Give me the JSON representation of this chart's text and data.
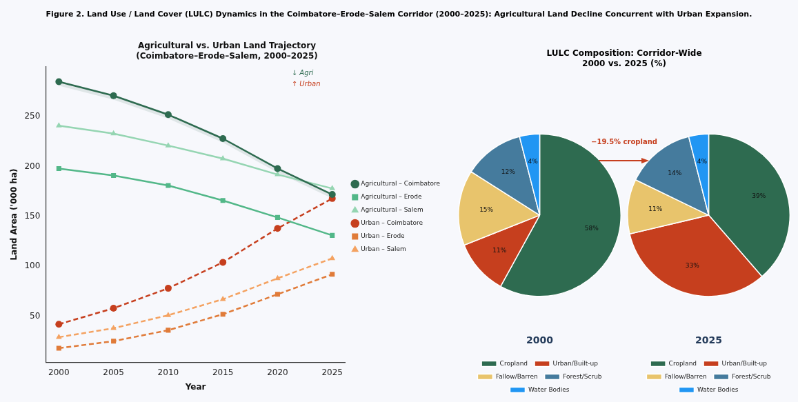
{
  "chart_data": [
    {
      "type": "line",
      "title": "Agricultural vs. Urban Land Trajectory",
      "subtitle": "(Coimbatore–Erode–Salem, 2000–2025)",
      "xlabel": "Year",
      "ylabel": "Land Area ('000 ha)",
      "x": [
        2000,
        2005,
        2010,
        2015,
        2020,
        2025
      ],
      "series": [
        {
          "name": "Agricultural – Coimbatore",
          "color": "#2e6b50",
          "values": [
            285,
            271,
            252,
            228,
            198,
            172
          ],
          "marker": "circle",
          "line_style": "solid",
          "lower": [
            281,
            267,
            248,
            224,
            194,
            168
          ],
          "upper": [
            285,
            271,
            252,
            228,
            198,
            172
          ]
        },
        {
          "name": "Agricultural – Erode",
          "color": "#52b788",
          "values": [
            198,
            191,
            181,
            166,
            149,
            131
          ],
          "marker": "square",
          "line_style": "solid"
        },
        {
          "name": "Agricultural – Salem",
          "color": "#95d5b2",
          "values": [
            241,
            233,
            221,
            208,
            192,
            178
          ],
          "marker": "triangle",
          "line_style": "solid"
        },
        {
          "name": "Urban – Coimbatore",
          "color": "#c63f1e",
          "values": [
            42,
            58,
            78,
            104,
            138,
            168
          ],
          "marker": "circle",
          "line_style": "dashed"
        },
        {
          "name": "Urban – Erode",
          "color": "#e07b39",
          "values": [
            18,
            25,
            36,
            52,
            72,
            92
          ],
          "marker": "square",
          "line_style": "dashed"
        },
        {
          "name": "Urban – Salem",
          "color": "#f4a261",
          "values": [
            29,
            38,
            51,
            67,
            88,
            108
          ],
          "marker": "triangle",
          "line_style": "dashed"
        }
      ],
      "xlim": [
        1998.8,
        2026.2
      ],
      "xticks": [
        2000,
        2005,
        2010,
        2015,
        2020,
        2025
      ],
      "ylim": [
        4,
        300
      ],
      "yticks": [
        50,
        100,
        150,
        200,
        250
      ],
      "grid": false,
      "legend": "right",
      "annotations": [
        "Figure 2. Land Use / Land Cover (LULC) Dynamics in the Coimbatore–Erode–Salem Corridor (2000–2025): Agricultural Land Decline Concurrent with Urban Expansion.",
        "↓ Agri",
        "↑ Urban"
      ]
    },
    {
      "type": "pie",
      "title": "LULC Composition: Corridor-Wide",
      "subtitle": "2000 vs. 2025 (%)",
      "xlabel": "2000",
      "categories": [
        "Cropland",
        "Urban/Built-up",
        "Fallow/Barren",
        "Forest/Scrub",
        "Water Bodies"
      ],
      "values": [
        58,
        11,
        15,
        12,
        4
      ],
      "value_labels": [
        "58%",
        "11%",
        "15%",
        "12%",
        "4%"
      ],
      "colors": [
        "#2e6b50",
        "#c63f1e",
        "#e8c46c",
        "#457b9d",
        "#2196f3"
      ],
      "legend": "bottom"
    },
    {
      "type": "pie",
      "xlabel": "2025",
      "categories": [
        "Cropland",
        "Urban/Built-up",
        "Fallow/Barren",
        "Forest/Scrub",
        "Water Bodies"
      ],
      "values": [
        39,
        33,
        11,
        14,
        4
      ],
      "value_labels": [
        "39%",
        "33%",
        "11%",
        "14%",
        "4%"
      ],
      "colors": [
        "#2e6b50",
        "#c63f1e",
        "#e8c46c",
        "#457b9d",
        "#2196f3"
      ],
      "legend": "bottom",
      "annotations": [
        "−19.5% cropland"
      ]
    }
  ]
}
